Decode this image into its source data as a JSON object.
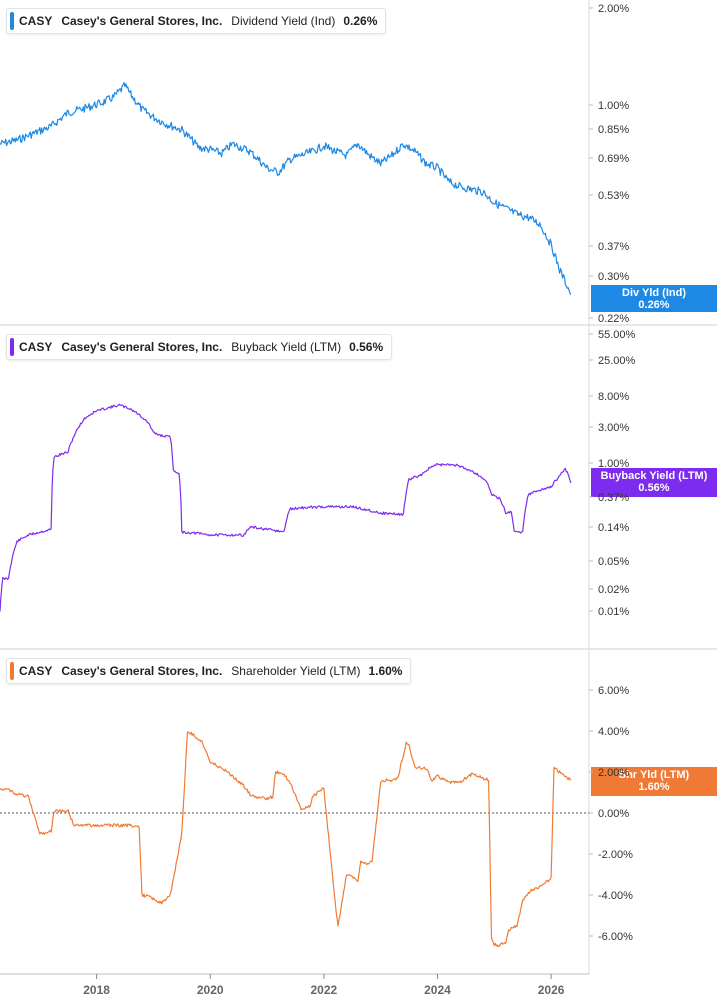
{
  "chart_data": [
    {
      "type": "line",
      "ticker": "CASY",
      "company": "Casey's General Stores, Inc.",
      "metric": "Dividend Yield (Ind)",
      "current_value": "0.26%",
      "flag_label": "Div Yld (Ind)",
      "color": "#1e88e5",
      "scale": "log",
      "y_ticks": [
        "2.00%",
        "1.00%",
        "0.85%",
        "0.69%",
        "0.53%",
        "0.37%",
        "0.30%",
        "0.22%"
      ],
      "x": [
        2016.3,
        2016.6,
        2016.9,
        2017.2,
        2017.5,
        2017.8,
        2018.1,
        2018.3,
        2018.5,
        2018.6,
        2018.8,
        2019.0,
        2019.2,
        2019.5,
        2019.8,
        2020.0,
        2020.2,
        2020.4,
        2020.7,
        2021.0,
        2021.2,
        2021.4,
        2021.6,
        2021.8,
        2022.0,
        2022.2,
        2022.4,
        2022.6,
        2022.8,
        2023.0,
        2023.2,
        2023.4,
        2023.6,
        2023.8,
        2024.0,
        2024.2,
        2024.4,
        2024.6,
        2024.8,
        2025.0,
        2025.2,
        2025.4,
        2025.6,
        2025.8,
        2026.0,
        2026.15,
        2026.35
      ],
      "values": [
        0.76,
        0.78,
        0.82,
        0.86,
        0.95,
        0.98,
        1.02,
        1.06,
        1.15,
        1.08,
        0.97,
        0.92,
        0.88,
        0.84,
        0.74,
        0.73,
        0.71,
        0.76,
        0.72,
        0.64,
        0.62,
        0.68,
        0.7,
        0.72,
        0.75,
        0.72,
        0.7,
        0.76,
        0.7,
        0.66,
        0.7,
        0.76,
        0.72,
        0.66,
        0.64,
        0.58,
        0.56,
        0.55,
        0.54,
        0.5,
        0.48,
        0.46,
        0.45,
        0.43,
        0.37,
        0.31,
        0.26
      ]
    },
    {
      "type": "line",
      "ticker": "CASY",
      "company": "Casey's General Stores, Inc.",
      "metric": "Buyback Yield (LTM)",
      "current_value": "0.56%",
      "flag_label": "Buyback Yield (LTM)",
      "color": "#7e2bf0",
      "scale": "symlog",
      "y_ticks": [
        "55.00%",
        "25.00%",
        "8.00%",
        "3.00%",
        "1.00%",
        "0.37%",
        "0.14%",
        "0.05%",
        "0.02%",
        "0.01%"
      ],
      "x": [
        2016.3,
        2016.35,
        2016.45,
        2016.6,
        2016.8,
        2017.0,
        2017.2,
        2017.25,
        2017.5,
        2017.8,
        2018.0,
        2018.2,
        2018.4,
        2018.6,
        2018.9,
        2019.0,
        2019.15,
        2019.3,
        2019.35,
        2019.45,
        2019.5,
        2019.8,
        2020.0,
        2020.3,
        2020.6,
        2020.7,
        2021.0,
        2021.3,
        2021.4,
        2021.6,
        2022.0,
        2022.5,
        2023.0,
        2023.4,
        2023.5,
        2023.7,
        2023.9,
        2024.0,
        2024.3,
        2024.6,
        2024.85,
        2024.95,
        2025.1,
        2025.2,
        2025.3,
        2025.35,
        2025.5,
        2025.6,
        2025.8,
        2026.0,
        2026.1,
        2026.25,
        2026.35
      ],
      "values": [
        0.01,
        0.028,
        0.028,
        0.09,
        0.11,
        0.12,
        0.13,
        1.2,
        1.4,
        4.0,
        5.0,
        5.5,
        6.0,
        5.3,
        3.5,
        2.5,
        2.3,
        2.2,
        0.8,
        0.75,
        0.12,
        0.115,
        0.11,
        0.11,
        0.11,
        0.14,
        0.13,
        0.12,
        0.25,
        0.26,
        0.27,
        0.27,
        0.22,
        0.21,
        0.62,
        0.7,
        0.9,
        0.95,
        0.95,
        0.8,
        0.6,
        0.4,
        0.35,
        0.22,
        0.23,
        0.12,
        0.12,
        0.4,
        0.45,
        0.5,
        0.62,
        0.85,
        0.56
      ]
    },
    {
      "type": "line",
      "ticker": "CASY",
      "company": "Casey's General Stores, Inc.",
      "metric": "Shareholder Yield (LTM)",
      "current_value": "1.60%",
      "flag_label": "Shr Yld (LTM)",
      "color": "#f07a35",
      "scale": "linear",
      "y_ticks": [
        "6.00%",
        "4.00%",
        "2.00%",
        "0.00%",
        "-2.00%",
        "-4.00%",
        "-6.00%"
      ],
      "ylim": [
        -6.6,
        6.6
      ],
      "x": [
        2016.3,
        2016.5,
        2016.6,
        2016.8,
        2017.0,
        2017.2,
        2017.25,
        2017.5,
        2017.6,
        2017.75,
        2017.8,
        2018.0,
        2018.3,
        2018.6,
        2018.7,
        2018.75,
        2018.8,
        2018.95,
        2019.0,
        2019.15,
        2019.3,
        2019.5,
        2019.6,
        2019.85,
        2020.0,
        2020.3,
        2020.6,
        2020.7,
        2020.8,
        2021.0,
        2021.1,
        2021.15,
        2021.3,
        2021.45,
        2021.6,
        2021.75,
        2021.8,
        2021.9,
        2022.0,
        2022.2,
        2022.25,
        2022.4,
        2022.6,
        2022.65,
        2022.8,
        2022.85,
        2023.0,
        2023.1,
        2023.2,
        2023.3,
        2023.45,
        2023.5,
        2023.6,
        2023.8,
        2023.9,
        2024.0,
        2024.2,
        2024.4,
        2024.6,
        2024.9,
        2024.95,
        2025.0,
        2025.05,
        2025.2,
        2025.25,
        2025.4,
        2025.5,
        2025.6,
        2025.7,
        2025.8,
        2025.9,
        2026.0,
        2026.05,
        2026.15,
        2026.35
      ],
      "values": [
        1.2,
        1.1,
        0.9,
        0.8,
        -1.0,
        -0.9,
        0.1,
        0.1,
        -0.6,
        -0.6,
        -0.6,
        -0.6,
        -0.6,
        -0.6,
        -0.7,
        -0.7,
        -4.0,
        -4.1,
        -4.2,
        -4.4,
        -4.0,
        -1.0,
        4.0,
        3.5,
        2.5,
        2.0,
        1.3,
        0.9,
        0.8,
        0.7,
        0.8,
        2.0,
        1.9,
        1.2,
        0.2,
        0.3,
        0.8,
        1.0,
        1.2,
        -4.4,
        -5.5,
        -3.0,
        -3.3,
        -2.4,
        -2.5,
        -2.3,
        1.5,
        1.6,
        1.6,
        1.7,
        3.4,
        3.3,
        2.2,
        2.2,
        1.6,
        1.8,
        1.5,
        1.5,
        1.9,
        1.6,
        -6.1,
        -6.4,
        -6.5,
        -6.3,
        -5.7,
        -5.5,
        -4.3,
        -3.9,
        -3.7,
        -3.6,
        -3.4,
        -3.2,
        2.2,
        2.0,
        1.6
      ]
    }
  ],
  "x_axis": {
    "ticks": [
      "2018",
      "2020",
      "2022",
      "2024",
      "2026"
    ],
    "ticks_values": [
      2018,
      2020,
      2022,
      2024,
      2026
    ]
  }
}
